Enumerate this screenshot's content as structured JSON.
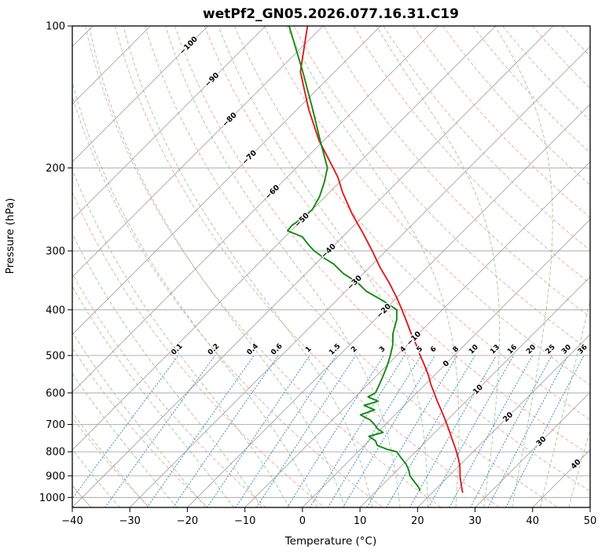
{
  "title": "wetPf2_GN05.2026.077.16.31.C19",
  "axes": {
    "x_label": "Temperature (°C)",
    "y_label": "Pressure (hPa)",
    "x_ticks": [
      -40,
      -30,
      -20,
      -10,
      0,
      10,
      20,
      30,
      40,
      50
    ],
    "x_tick_labels": [
      "−40",
      "−30",
      "−20",
      "−10",
      "0",
      "10",
      "20",
      "30",
      "40",
      "50"
    ],
    "y_ticks": [
      100,
      200,
      300,
      400,
      500,
      600,
      700,
      800,
      900,
      1000
    ]
  },
  "chart_data": {
    "type": "line",
    "diagram": "skew-t-log-p",
    "title": "wetPf2_GN05.2026.077.16.31.C19",
    "xlabel": "Temperature (°C)",
    "ylabel": "Pressure (hPa)",
    "x_range_c": [
      -40,
      50
    ],
    "p_range_hpa": [
      100,
      1050
    ],
    "skew": "isotherms at 45 degrees",
    "grid": true,
    "series": [
      {
        "name": "temperature",
        "color": "#e01b1b",
        "points": [
          [
            100,
            -82.7
          ],
          [
            125,
            -76.0
          ],
          [
            150,
            -68.1
          ],
          [
            175,
            -60.8
          ],
          [
            200,
            -53.6
          ],
          [
            210,
            -51.0
          ],
          [
            225,
            -47.8
          ],
          [
            250,
            -42.4
          ],
          [
            275,
            -37.1
          ],
          [
            300,
            -32.4
          ],
          [
            325,
            -28.2
          ],
          [
            350,
            -24.0
          ],
          [
            375,
            -20.3
          ],
          [
            400,
            -17.0
          ],
          [
            425,
            -14.0
          ],
          [
            450,
            -11.2
          ],
          [
            475,
            -8.4
          ],
          [
            500,
            -5.9
          ],
          [
            525,
            -3.4
          ],
          [
            550,
            -1.1
          ],
          [
            575,
            0.9
          ],
          [
            600,
            3.0
          ],
          [
            625,
            5.0
          ],
          [
            650,
            7.0
          ],
          [
            675,
            8.9
          ],
          [
            700,
            10.7
          ],
          [
            725,
            12.4
          ],
          [
            750,
            14.0
          ],
          [
            775,
            15.6
          ],
          [
            800,
            17.1
          ],
          [
            825,
            18.5
          ],
          [
            850,
            19.8
          ],
          [
            875,
            20.9
          ],
          [
            900,
            21.9
          ],
          [
            925,
            23.0
          ],
          [
            950,
            24.1
          ],
          [
            975,
            25.2
          ]
        ]
      },
      {
        "name": "dewpoint",
        "color": "#128a12",
        "points": [
          [
            100,
            -85.9
          ],
          [
            125,
            -75.6
          ],
          [
            150,
            -67.4
          ],
          [
            175,
            -60.6
          ],
          [
            200,
            -54.6
          ],
          [
            215,
            -52.6
          ],
          [
            230,
            -51.0
          ],
          [
            245,
            -50.0
          ],
          [
            255,
            -50.2
          ],
          [
            265,
            -50.8
          ],
          [
            272,
            -50.6
          ],
          [
            280,
            -47.0
          ],
          [
            290,
            -44.8
          ],
          [
            300,
            -42.5
          ],
          [
            310,
            -39.7
          ],
          [
            320,
            -36.8
          ],
          [
            335,
            -33.5
          ],
          [
            350,
            -29.5
          ],
          [
            365,
            -26.5
          ],
          [
            385,
            -21.3
          ],
          [
            400,
            -17.9
          ],
          [
            420,
            -16.2
          ],
          [
            440,
            -15.0
          ],
          [
            450,
            -14.4
          ],
          [
            475,
            -12.5
          ],
          [
            500,
            -11.1
          ],
          [
            525,
            -9.9
          ],
          [
            550,
            -8.9
          ],
          [
            575,
            -8.0
          ],
          [
            600,
            -7.2
          ],
          [
            612,
            -7.8
          ],
          [
            625,
            -5.3
          ],
          [
            638,
            -7.0
          ],
          [
            652,
            -4.4
          ],
          [
            668,
            -6.0
          ],
          [
            685,
            -3.4
          ],
          [
            700,
            -1.9
          ],
          [
            715,
            -0.6
          ],
          [
            728,
            1.0
          ],
          [
            742,
            -0.8
          ],
          [
            758,
            1.1
          ],
          [
            775,
            2.2
          ],
          [
            790,
            4.5
          ],
          [
            800,
            6.7
          ],
          [
            825,
            8.6
          ],
          [
            850,
            10.5
          ],
          [
            875,
            12.0
          ],
          [
            900,
            13.2
          ],
          [
            925,
            14.9
          ],
          [
            950,
            16.6
          ],
          [
            965,
            17.4
          ]
        ]
      }
    ],
    "isolines": {
      "isotherms_c": {
        "start": -120,
        "end": 50,
        "step": 10
      },
      "isotherm_labels": [
        {
          "t": -100,
          "p": 110
        },
        {
          "t": -90,
          "p": 130
        },
        {
          "t": -80,
          "p": 158
        },
        {
          "t": -70,
          "p": 190
        },
        {
          "t": -60,
          "p": 225
        },
        {
          "t": -50,
          "p": 258
        },
        {
          "t": -40,
          "p": 300
        },
        {
          "t": -30,
          "p": 350
        },
        {
          "t": -20,
          "p": 402
        },
        {
          "t": -10,
          "p": 460
        },
        {
          "t": 0,
          "p": 520
        },
        {
          "t": 10,
          "p": 590
        },
        {
          "t": 20,
          "p": 675
        },
        {
          "t": 30,
          "p": 760
        },
        {
          "t": 40,
          "p": 850
        }
      ],
      "dry_adiabats_c": {
        "start": -40,
        "end": 190,
        "step": 10
      },
      "moist_adiabats_c": {
        "start": -55,
        "end": 45,
        "step": 5
      },
      "mixing_ratio_g_kg": [
        "0.1",
        "0.2",
        "0.4",
        "0.6",
        "1",
        "1.5",
        "2",
        "3",
        "4",
        "5",
        "6",
        "8",
        "10",
        "13",
        "16",
        "20",
        "25",
        "30",
        "36"
      ]
    },
    "label_colors": {
      "negative": "#1f77b4",
      "zero": "#808080",
      "positive": "#d62728"
    },
    "line_colors": {
      "isotherm": "#9c9c9c",
      "dry_adiabat": "#e2928b",
      "moist_adiabat": "#8cbf8c",
      "mixing_ratio": "#4a93c8"
    }
  }
}
